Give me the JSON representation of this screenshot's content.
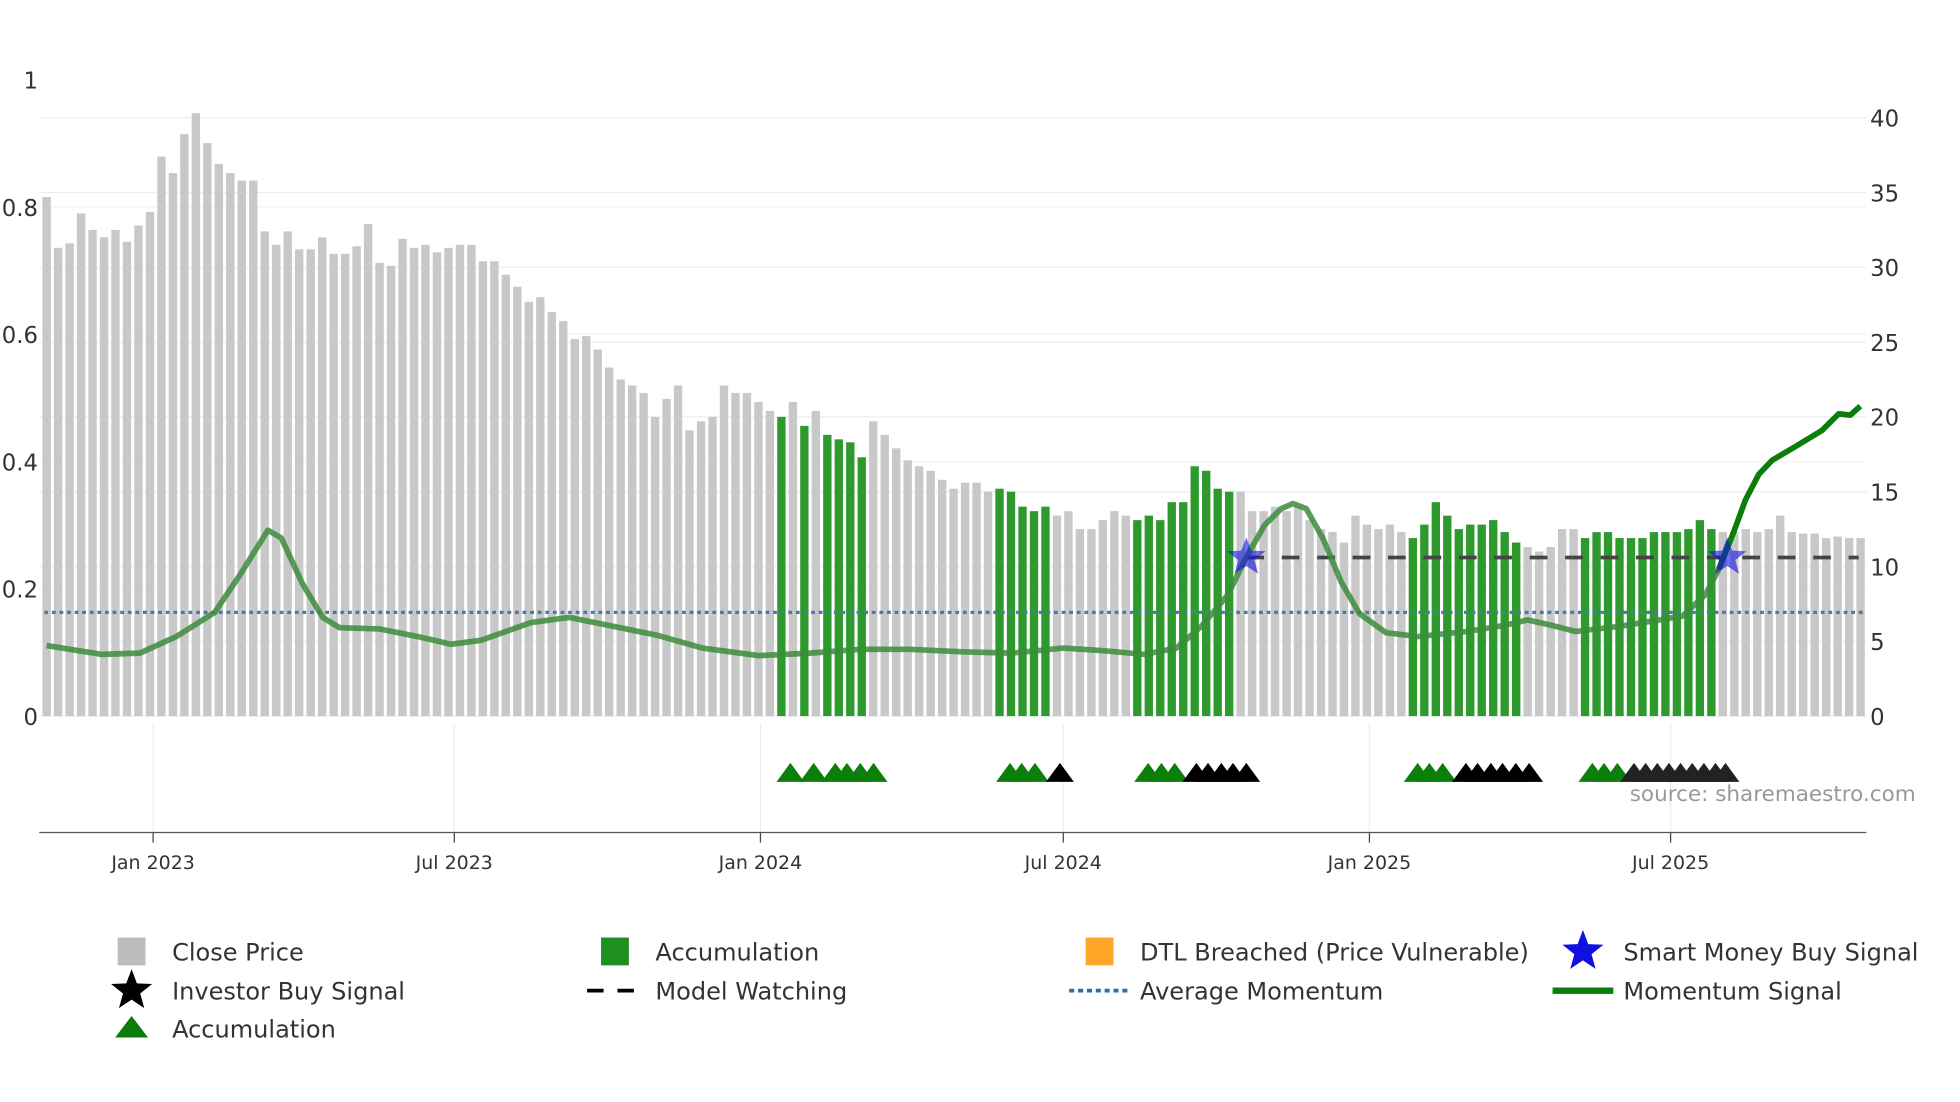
{
  "chart_data": {
    "type": "bar",
    "title": "",
    "source": "source: sharemaestro.com",
    "x_ticks": [
      {
        "label": "Jan 2023",
        "day": 0
      },
      {
        "label": "Jul 2023",
        "day": 181
      },
      {
        "label": "Jan 2024",
        "day": 365
      },
      {
        "label": "Jul 2024",
        "day": 547
      },
      {
        "label": "Jan 2025",
        "day": 731
      },
      {
        "label": "Jul 2025",
        "day": 912
      }
    ],
    "x_unit": "days since 2023-01-01",
    "left_axis": {
      "ylim": [
        0,
        1
      ],
      "ticks": [
        "0",
        "0.2",
        "0.4",
        "0.6",
        "0.8",
        "1"
      ]
    },
    "right_axis": {
      "ylim": [
        0,
        40
      ],
      "ticks": [
        "0",
        "5",
        "10",
        "15",
        "20",
        "25",
        "30",
        "35",
        "40"
      ]
    },
    "grid": true,
    "close_price": {
      "name": "Close Price",
      "first_day": -64,
      "step_days": 6.9,
      "values": [
        34.7,
        31.3,
        31.6,
        33.6,
        32.5,
        32.0,
        32.5,
        31.7,
        32.8,
        33.7,
        37.4,
        36.3,
        38.9,
        40.3,
        38.3,
        36.9,
        36.3,
        35.8,
        35.8,
        32.4,
        31.5,
        32.4,
        31.2,
        31.2,
        32.0,
        30.9,
        30.9,
        31.4,
        32.9,
        30.3,
        30.1,
        31.9,
        31.3,
        31.5,
        31.0,
        31.3,
        31.5,
        31.5,
        30.4,
        30.4,
        29.5,
        28.7,
        27.7,
        28.0,
        27.0,
        26.4,
        25.2,
        25.4,
        24.5,
        23.3,
        22.5,
        22.1,
        21.6,
        20.0,
        21.2,
        22.1,
        19.1,
        19.7,
        20.0,
        22.1,
        21.6,
        21.6,
        21.0,
        20.4,
        20.0,
        21.0,
        19.4,
        20.4,
        18.8,
        18.5,
        18.3,
        17.3,
        19.7,
        18.8,
        17.9,
        17.1,
        16.7,
        16.4,
        15.8,
        15.2,
        15.6,
        15.6,
        15.0,
        15.2,
        15.0,
        14.0,
        13.7,
        14.0,
        13.4,
        13.7,
        12.5,
        12.5,
        13.1,
        13.7,
        13.4,
        13.1,
        13.4,
        13.1,
        14.3,
        14.3,
        16.7,
        16.4,
        15.2,
        15.0,
        15.0,
        13.7,
        13.7,
        14.0,
        13.7,
        14.0,
        13.1,
        12.5,
        12.3,
        11.6,
        13.4,
        12.8,
        12.5,
        12.8,
        12.3,
        11.9,
        12.8,
        14.3,
        13.4,
        12.5,
        12.8,
        12.8,
        13.1,
        12.3,
        11.6,
        11.3,
        11.0,
        11.3,
        12.5,
        12.5,
        11.9,
        12.3,
        12.3,
        11.9,
        11.9,
        11.9,
        12.3,
        12.3,
        12.3,
        12.5,
        13.1,
        12.5,
        12.3,
        12.3,
        12.5,
        12.3,
        12.5,
        13.4,
        12.3,
        12.2,
        12.2,
        11.9,
        12.0,
        11.9,
        11.9
      ],
      "accumulation_indices": [
        64,
        66,
        68,
        69,
        70,
        71,
        83,
        84,
        85,
        86,
        87,
        95,
        96,
        97,
        98,
        99,
        100,
        101,
        102,
        103,
        119,
        120,
        121,
        122,
        123,
        124,
        125,
        126,
        127,
        128,
        134,
        135,
        136,
        137,
        138,
        139,
        140,
        141,
        142,
        143,
        144,
        145
      ]
    },
    "momentum_signal": {
      "name": "Momentum Signal",
      "points": [
        [
          -64,
          0.111
        ],
        [
          -31,
          0.097
        ],
        [
          -8,
          0.099
        ],
        [
          14,
          0.125
        ],
        [
          37,
          0.163
        ],
        [
          52,
          0.221
        ],
        [
          69,
          0.292
        ],
        [
          77,
          0.28
        ],
        [
          90,
          0.207
        ],
        [
          102,
          0.155
        ],
        [
          112,
          0.139
        ],
        [
          136,
          0.137
        ],
        [
          159,
          0.125
        ],
        [
          179,
          0.113
        ],
        [
          197,
          0.119
        ],
        [
          227,
          0.147
        ],
        [
          250,
          0.155
        ],
        [
          273,
          0.143
        ],
        [
          303,
          0.127
        ],
        [
          330,
          0.107
        ],
        [
          364,
          0.095
        ],
        [
          395,
          0.099
        ],
        [
          425,
          0.105
        ],
        [
          455,
          0.105
        ],
        [
          486,
          0.101
        ],
        [
          516,
          0.099
        ],
        [
          547,
          0.107
        ],
        [
          570,
          0.103
        ],
        [
          596,
          0.097
        ],
        [
          615,
          0.107
        ],
        [
          630,
          0.141
        ],
        [
          646,
          0.191
        ],
        [
          657,
          0.25
        ],
        [
          668,
          0.3
        ],
        [
          678,
          0.326
        ],
        [
          685,
          0.334
        ],
        [
          693,
          0.326
        ],
        [
          703,
          0.28
        ],
        [
          714,
          0.211
        ],
        [
          725,
          0.161
        ],
        [
          741,
          0.131
        ],
        [
          760,
          0.125
        ],
        [
          790,
          0.133
        ],
        [
          813,
          0.143
        ],
        [
          826,
          0.151
        ],
        [
          840,
          0.143
        ],
        [
          855,
          0.133
        ],
        [
          881,
          0.141
        ],
        [
          919,
          0.157
        ],
        [
          933,
          0.191
        ],
        [
          941,
          0.231
        ],
        [
          950,
          0.29
        ],
        [
          957,
          0.34
        ],
        [
          965,
          0.38
        ],
        [
          973,
          0.402
        ],
        [
          988,
          0.425
        ],
        [
          1003,
          0.449
        ],
        [
          1013,
          0.475
        ],
        [
          1020,
          0.473
        ],
        [
          1026,
          0.487
        ]
      ],
      "strong_from_day": 946
    },
    "average_momentum": {
      "name": "Average Momentum",
      "value": 0.163
    },
    "model_watching": {
      "name": "Model Watching",
      "level": 10.6,
      "from_day": 657,
      "to_day": 1025
    },
    "smart_money_buy_signals": [
      {
        "day": 657,
        "level": 10.6
      },
      {
        "day": 946,
        "level": 10.6
      }
    ],
    "triangle_markers": {
      "accumulation": [
        383,
        397,
        410,
        417,
        425,
        433,
        515,
        522,
        530,
        598,
        606,
        614,
        760,
        767,
        775,
        865,
        872,
        880
      ],
      "investor": [
        545,
        627,
        634,
        642,
        649,
        657,
        789,
        796,
        804,
        811,
        819,
        827
      ],
      "investor_dim": [
        890,
        897,
        904,
        911,
        918,
        925,
        932,
        939,
        945
      ]
    },
    "colors": {
      "close": "#c8c8c8",
      "accumulation": "#2e9a2e",
      "momentum": "#3c8c3c",
      "momentum_strong": "#0a7d0a",
      "avg": "#4a7aa8",
      "star": "#1010e0",
      "dtl": "#ffa726"
    },
    "legend": [
      {
        "label": "Close Price",
        "symbol": "square",
        "color": "#bdbdbd"
      },
      {
        "label": "Accumulation",
        "symbol": "square",
        "color": "#1f8f1f"
      },
      {
        "label": "DTL Breached (Price Vulnerable)",
        "symbol": "square",
        "color": "#ffa726"
      },
      {
        "label": "Smart Money Buy Signal",
        "symbol": "star",
        "color": "#1010e0"
      },
      {
        "label": "Investor Buy Signal",
        "symbol": "star",
        "color": "#000000"
      },
      {
        "label": "Model Watching",
        "symbol": "dash",
        "color": "#000000"
      },
      {
        "label": "Average Momentum",
        "symbol": "dot",
        "color": "#2b6fa8"
      },
      {
        "label": "Momentum Signal",
        "symbol": "line",
        "color": "#0a7d0a"
      },
      {
        "label": "Accumulation",
        "symbol": "triangle",
        "color": "#0a7d0a"
      }
    ]
  }
}
